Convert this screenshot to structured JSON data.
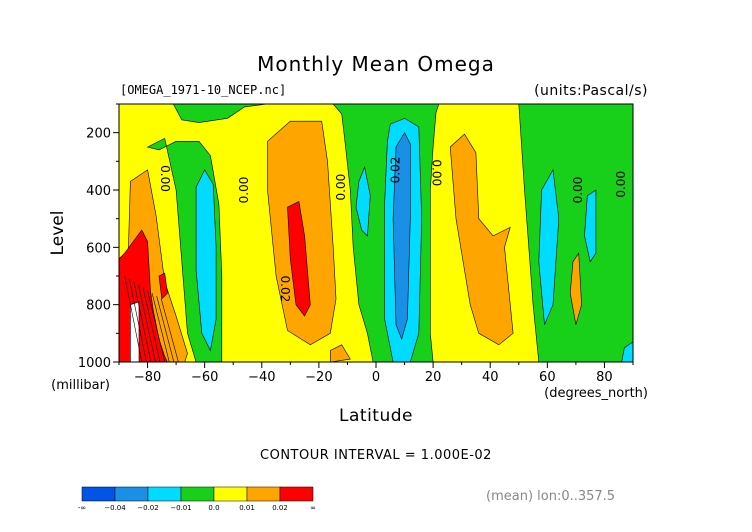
{
  "chart_data": {
    "type": "heatmap",
    "title": "Monthly Mean Omega",
    "file_label": "[OMEGA_1971-10_NCEP.nc]",
    "units_label": "(units:Pascal/s)",
    "xlabel": "Latitude",
    "x_unit_label": "(degrees_north)",
    "ylabel": "Level",
    "y_unit_label": "(millibar)",
    "xlim": [
      -90,
      90
    ],
    "ylim": [
      1000,
      100
    ],
    "x_ticks": [
      -80,
      -60,
      -40,
      -20,
      0,
      20,
      40,
      60,
      80
    ],
    "x_tick_labels": [
      "−80",
      "−60",
      "−40",
      "−20",
      "0",
      "20",
      "40",
      "60",
      "80"
    ],
    "y_ticks": [
      200,
      400,
      600,
      800,
      1000
    ],
    "y_tick_labels": [
      "200",
      "400",
      "600",
      "800",
      "1000"
    ],
    "contour_interval_text": "CONTOUR INTERVAL = 1.000E-02",
    "mean_note": "(mean) lon:0..357.5",
    "colorbar": {
      "colors": [
        "#0055e6",
        "#1a8fe6",
        "#00dcff",
        "#18cf1a",
        "#ffff00",
        "#ffa500",
        "#ff0000"
      ],
      "labels": [
        "-∞",
        "−0.04",
        "−0.02",
        "−0.01",
        "0.0",
        "0.01",
        "0.02",
        "∞"
      ]
    },
    "background_color": "#ffff00",
    "regions": [
      {
        "color": "#18cf1a",
        "points": [
          [
            -90,
            100
          ],
          [
            -71,
            100
          ],
          [
            -68,
            155
          ],
          [
            -62,
            165
          ],
          [
            -52,
            150
          ],
          [
            -46,
            110
          ],
          [
            -38,
            100
          ],
          [
            -90,
            100
          ]
        ]
      },
      {
        "color": "#18cf1a",
        "points": [
          [
            -15,
            100
          ],
          [
            -12,
            135
          ],
          [
            -11,
            220
          ],
          [
            -9,
            400
          ],
          [
            -8,
            600
          ],
          [
            -6,
            800
          ],
          [
            -3,
            900
          ],
          [
            -1,
            1000
          ],
          [
            20,
            1000
          ],
          [
            19,
            900
          ],
          [
            19,
            700
          ],
          [
            19,
            400
          ],
          [
            20,
            250
          ],
          [
            21,
            130
          ],
          [
            22,
            100
          ]
        ]
      },
      {
        "color": "#18cf1a",
        "points": [
          [
            50,
            100
          ],
          [
            52,
            400
          ],
          [
            55,
            800
          ],
          [
            57,
            1000
          ],
          [
            90,
            1000
          ],
          [
            90,
            100
          ]
        ]
      },
      {
        "color": "#18cf1a",
        "points": [
          [
            -80,
            250
          ],
          [
            -74,
            220
          ],
          [
            -70,
            400
          ],
          [
            -66,
            900
          ],
          [
            -63,
            1000
          ],
          [
            -54,
            1000
          ],
          [
            -54,
            700
          ],
          [
            -55,
            450
          ],
          [
            -58,
            280
          ],
          [
            -62,
            230
          ],
          [
            -70,
            230
          ],
          [
            -76,
            260
          ]
        ]
      },
      {
        "color": "#18cf1a",
        "points": [
          [
            -92,
            640
          ],
          [
            -86,
            640
          ],
          [
            -86,
            1010
          ],
          [
            -92,
            1010
          ]
        ]
      },
      {
        "color": "#00dcff",
        "points": [
          [
            -63,
            390
          ],
          [
            -60,
            330
          ],
          [
            -57,
            380
          ],
          [
            -56,
            600
          ],
          [
            -56,
            850
          ],
          [
            -58,
            960
          ],
          [
            -61,
            900
          ],
          [
            -63,
            680
          ]
        ]
      },
      {
        "color": "#00dcff",
        "points": [
          [
            -6,
            370
          ],
          [
            -4,
            320
          ],
          [
            -2,
            420
          ],
          [
            -3,
            560
          ],
          [
            -5,
            540
          ],
          [
            -7,
            460
          ]
        ]
      },
      {
        "color": "#00dcff",
        "points": [
          [
            5,
            170
          ],
          [
            10,
            150
          ],
          [
            15,
            180
          ],
          [
            16,
            500
          ],
          [
            15,
            900
          ],
          [
            12,
            1000
          ],
          [
            6,
            1000
          ],
          [
            3,
            850
          ],
          [
            3,
            450
          ],
          [
            4,
            230
          ]
        ]
      },
      {
        "color": "#00dcff",
        "points": [
          [
            58,
            400
          ],
          [
            62,
            330
          ],
          [
            64,
            500
          ],
          [
            62,
            800
          ],
          [
            59,
            870
          ],
          [
            57,
            650
          ]
        ]
      },
      {
        "color": "#00dcff",
        "points": [
          [
            74,
            420
          ],
          [
            77,
            400
          ],
          [
            77,
            620
          ],
          [
            75,
            650
          ],
          [
            73,
            560
          ]
        ]
      },
      {
        "color": "#00dcff",
        "points": [
          [
            87,
            950
          ],
          [
            90,
            930
          ],
          [
            90,
            1000
          ],
          [
            86,
            1000
          ]
        ]
      },
      {
        "color": "#1a8fe6",
        "points": [
          [
            7,
            250
          ],
          [
            10,
            200
          ],
          [
            12,
            240
          ],
          [
            12,
            500
          ],
          [
            11,
            850
          ],
          [
            9,
            920
          ],
          [
            7,
            870
          ],
          [
            6,
            500
          ]
        ]
      },
      {
        "color": "#ffa500",
        "points": [
          [
            -86,
            370
          ],
          [
            -80,
            330
          ],
          [
            -77,
            490
          ],
          [
            -74,
            720
          ],
          [
            -70,
            840
          ],
          [
            -66,
            970
          ],
          [
            -67,
            1000
          ],
          [
            -86,
            1000
          ],
          [
            -87,
            700
          ]
        ]
      },
      {
        "color": "#ffa500",
        "points": [
          [
            -38,
            230
          ],
          [
            -30,
            160
          ],
          [
            -19,
            160
          ],
          [
            -17,
            300
          ],
          [
            -15,
            600
          ],
          [
            -14,
            780
          ],
          [
            -16,
            900
          ],
          [
            -23,
            940
          ],
          [
            -31,
            890
          ],
          [
            -35,
            700
          ],
          [
            -38,
            400
          ]
        ]
      },
      {
        "color": "#ffa500",
        "points": [
          [
            26,
            250
          ],
          [
            31,
            205
          ],
          [
            35,
            270
          ],
          [
            36,
            500
          ],
          [
            41,
            560
          ],
          [
            47,
            530
          ],
          [
            45,
            600
          ],
          [
            48,
            900
          ],
          [
            43,
            940
          ],
          [
            36,
            900
          ],
          [
            33,
            800
          ],
          [
            28,
            500
          ]
        ]
      },
      {
        "color": "#ffa500",
        "points": [
          [
            69,
            650
          ],
          [
            71,
            620
          ],
          [
            72,
            800
          ],
          [
            70,
            870
          ],
          [
            68,
            760
          ]
        ]
      },
      {
        "color": "#ffa500",
        "points": [
          [
            -16,
            960
          ],
          [
            -12,
            940
          ],
          [
            -9,
            990
          ],
          [
            -16,
            1000
          ]
        ]
      },
      {
        "color": "#ff0000",
        "points": [
          [
            -90,
            640
          ],
          [
            -88,
            620
          ],
          [
            -82,
            540
          ],
          [
            -80,
            580
          ],
          [
            -79,
            750
          ],
          [
            -78,
            820
          ],
          [
            -76,
            920
          ],
          [
            -74,
            980
          ],
          [
            -73,
            1000
          ],
          [
            -90,
            1000
          ]
        ]
      },
      {
        "color": "#ff0000",
        "points": [
          [
            -31,
            460
          ],
          [
            -27,
            440
          ],
          [
            -25,
            560
          ],
          [
            -23,
            800
          ],
          [
            -25,
            840
          ],
          [
            -28,
            800
          ],
          [
            -30,
            640
          ]
        ]
      },
      {
        "color": "#ff0000",
        "points": [
          [
            -76,
            700
          ],
          [
            -74,
            690
          ],
          [
            -73,
            760
          ],
          [
            -75,
            780
          ]
        ]
      },
      {
        "color": "#ffffff",
        "points": [
          [
            -86,
            800
          ],
          [
            -83,
            790
          ],
          [
            -83,
            1000
          ],
          [
            -86,
            1000
          ]
        ]
      }
    ],
    "contour_labels": [
      {
        "text": "0.00",
        "x": -74,
        "y": 360,
        "rotate": 90
      },
      {
        "text": "0.00",
        "x": -46,
        "y": 400,
        "rotate": -90
      },
      {
        "text": "0.00",
        "x": -12,
        "y": 390,
        "rotate": -90
      },
      {
        "text": "0.02",
        "x": 7,
        "y": 330,
        "rotate": -90
      },
      {
        "text": "0.00",
        "x": 21,
        "y": 340,
        "rotate": 90
      },
      {
        "text": "0.02",
        "x": -32,
        "y": 745,
        "rotate": 90
      },
      {
        "text": "0.00",
        "x": 71,
        "y": 400,
        "rotate": -90
      },
      {
        "text": "0.00",
        "x": 86,
        "y": 380,
        "rotate": -90
      }
    ]
  }
}
